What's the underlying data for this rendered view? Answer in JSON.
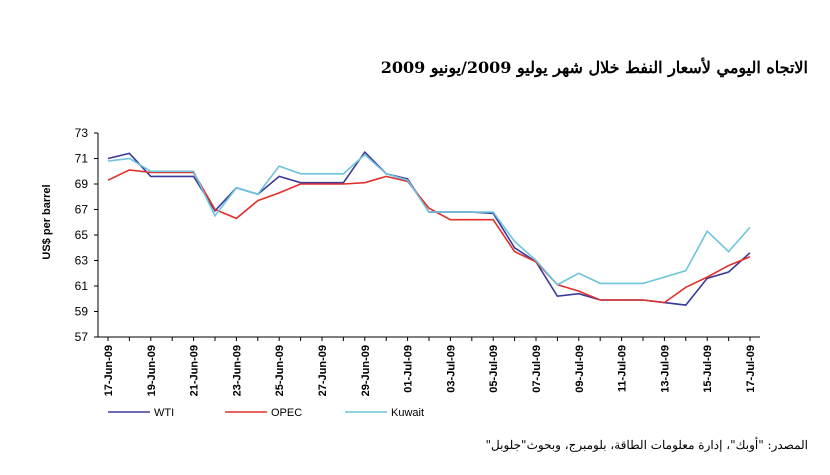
{
  "title": "الاتجاه اليومي لأسعار النفط خلال شهر يوليو 2009/يونيو 2009",
  "source": "المصدر: \"أوبك\"، إدارة معلومات الطاقة، بلومبرج، وبحوث\"جلوبل\"",
  "chart_data": {
    "type": "line",
    "title": "الاتجاه اليومي لأسعار النفط خلال شهر يوليو 2009/يونيو 2009",
    "ylabel": "US$ per barrel",
    "xlabel": "",
    "ylim": [
      57,
      73
    ],
    "yticks": [
      57,
      59,
      61,
      63,
      65,
      67,
      69,
      71,
      73
    ],
    "grid": false,
    "legend": "bottom",
    "categories": [
      "17-Jun-09",
      "18-Jun-09",
      "19-Jun-09",
      "20-Jun-09",
      "21-Jun-09",
      "22-Jun-09",
      "23-Jun-09",
      "24-Jun-09",
      "25-Jun-09",
      "26-Jun-09",
      "27-Jun-09",
      "28-Jun-09",
      "29-Jun-09",
      "30-Jun-09",
      "01-Jul-09",
      "02-Jul-09",
      "03-Jul-09",
      "04-Jul-09",
      "05-Jul-09",
      "06-Jul-09",
      "07-Jul-09",
      "08-Jul-09",
      "09-Jul-09",
      "10-Jul-09",
      "11-Jul-09",
      "12-Jul-09",
      "13-Jul-09",
      "14-Jul-09",
      "15-Jul-09",
      "16-Jul-09",
      "17-Jul-09"
    ],
    "tick_labels": [
      "17-Jun-09",
      "19-Jun-09",
      "21-Jun-09",
      "23-Jun-09",
      "25-Jun-09",
      "27-Jun-09",
      "29-Jun-09",
      "01-Jul-09",
      "03-Jul-09",
      "05-Jul-09",
      "07-Jul-09",
      "09-Jul-09",
      "11-Jul-09",
      "13-Jul-09",
      "15-Jul-09",
      "17-Jul-09"
    ],
    "series": [
      {
        "name": "WTI",
        "color": "#3a3a9a",
        "values": [
          71.0,
          71.4,
          69.6,
          69.6,
          69.6,
          66.9,
          68.7,
          68.2,
          69.6,
          69.1,
          69.1,
          69.1,
          71.5,
          69.8,
          69.4,
          66.8,
          66.8,
          66.8,
          66.7,
          64.0,
          62.9,
          60.2,
          60.4,
          59.9,
          59.9,
          59.9,
          59.7,
          59.5,
          61.6,
          62.1,
          63.6
        ]
      },
      {
        "name": "OPEC",
        "color": "#e0302c",
        "values": [
          69.3,
          70.1,
          69.9,
          69.9,
          69.9,
          67.0,
          66.3,
          67.7,
          68.3,
          69.0,
          69.0,
          69.0,
          69.1,
          69.6,
          69.2,
          67.1,
          66.2,
          66.2,
          66.2,
          63.7,
          62.9,
          61.1,
          60.6,
          59.9,
          59.9,
          59.9,
          59.7,
          60.9,
          61.7,
          62.6,
          63.3
        ]
      },
      {
        "name": "Kuwait",
        "color": "#6ec4da",
        "values": [
          70.8,
          71.0,
          70.0,
          70.0,
          70.0,
          66.5,
          68.7,
          68.2,
          70.4,
          69.8,
          69.8,
          69.8,
          71.3,
          69.8,
          69.3,
          66.8,
          66.8,
          66.8,
          66.8,
          64.5,
          63.0,
          61.1,
          62.0,
          61.2,
          61.2,
          61.2,
          61.7,
          62.2,
          65.3,
          63.7,
          65.6
        ]
      }
    ]
  }
}
